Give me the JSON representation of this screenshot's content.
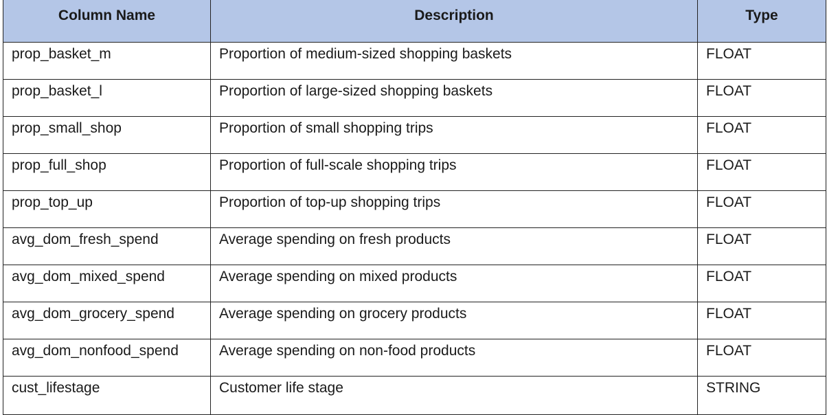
{
  "table": {
    "headers": {
      "column_name": "Column Name",
      "description": "Description",
      "type": "Type"
    },
    "rows": [
      {
        "name": "prop_basket_m",
        "description": "Proportion of medium-sized shopping baskets",
        "type": "FLOAT"
      },
      {
        "name": "prop_basket_l",
        "description": "Proportion of large-sized shopping baskets",
        "type": "FLOAT"
      },
      {
        "name": "prop_small_shop",
        "description": "Proportion of small shopping trips",
        "type": "FLOAT"
      },
      {
        "name": "prop_full_shop",
        "description": "Proportion of full-scale shopping trips",
        "type": "FLOAT"
      },
      {
        "name": "prop_top_up",
        "description": "Proportion of top-up shopping trips",
        "type": "FLOAT"
      },
      {
        "name": "avg_dom_fresh_spend",
        "description": "Average spending on fresh products",
        "type": "FLOAT"
      },
      {
        "name": "avg_dom_mixed_spend",
        "description": "Average spending on mixed products",
        "type": "FLOAT"
      },
      {
        "name": "avg_dom_grocery_spend",
        "description": "Average spending on grocery products",
        "type": "FLOAT"
      },
      {
        "name": "avg_dom_nonfood_spend",
        "description": "Average spending on non-food products",
        "type": "FLOAT"
      },
      {
        "name": "cust_lifestage",
        "description": "Customer life stage",
        "type": "STRING"
      }
    ]
  },
  "colors": {
    "header_background": "#b4c6e7",
    "border": "#222222"
  }
}
